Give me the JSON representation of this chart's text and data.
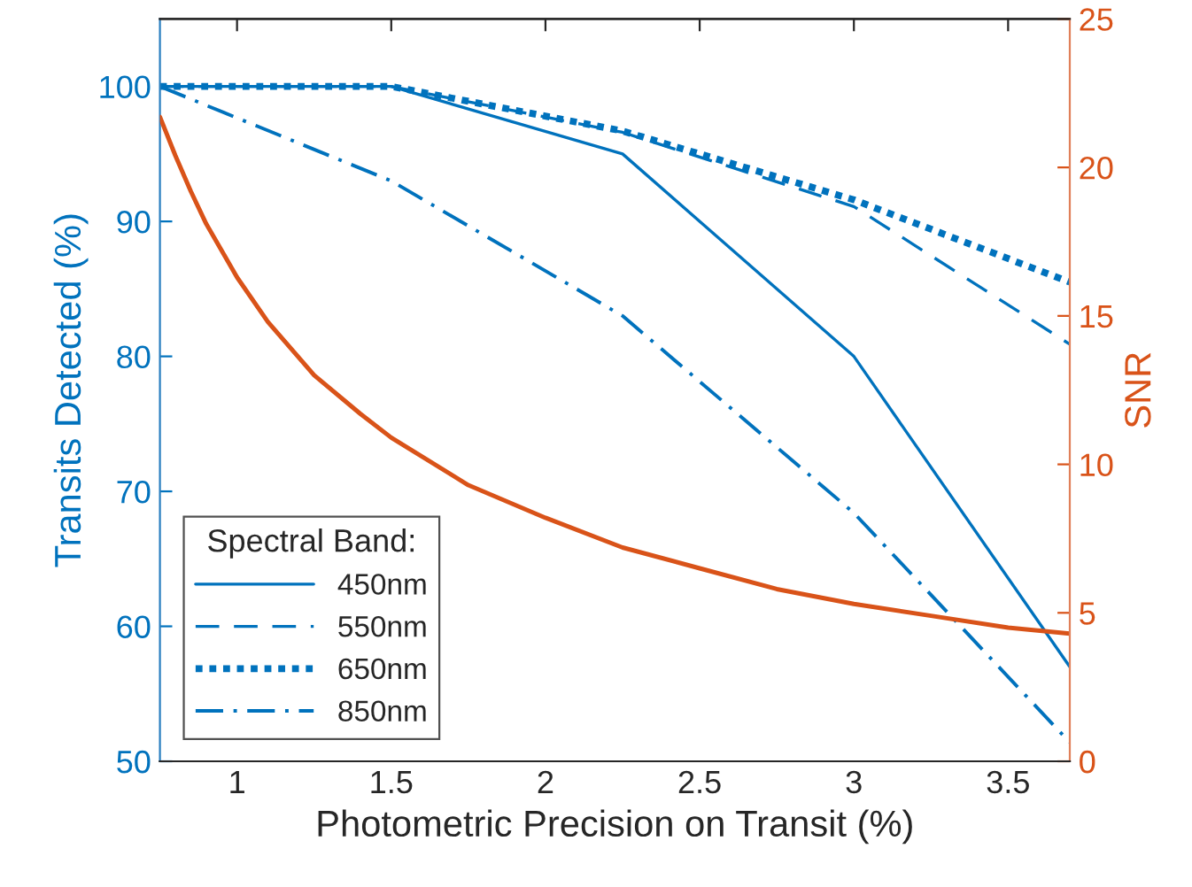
{
  "chart_data": {
    "type": "line",
    "xlabel": "Photometric Precision on Transit (%)",
    "ylabel": "Transits Detected (%)",
    "y2label": "SNR",
    "legend_title": "Spectral Band:",
    "legend": "bottom left",
    "grid": false,
    "xlim": [
      0.75,
      3.7
    ],
    "xticks": [
      1,
      1.5,
      2,
      2.5,
      3,
      3.5
    ],
    "ylim": [
      50,
      105
    ],
    "yticks": [
      50,
      60,
      70,
      80,
      90,
      100
    ],
    "y2lim": [
      0,
      25
    ],
    "y2ticks": [
      0,
      5,
      10,
      15,
      20,
      25
    ],
    "series": [
      {
        "name": "450nm",
        "color": "#0072bd",
        "line_style": "solid",
        "x": [
          0.75,
          1.5,
          2.25,
          3.0,
          3.7
        ],
        "values": [
          100,
          100,
          95,
          80,
          57
        ]
      },
      {
        "name": "550nm",
        "color": "#0072bd",
        "line_style": "dashed",
        "x": [
          0.75,
          1.5,
          2.25,
          3.0,
          3.7
        ],
        "values": [
          100,
          100,
          96.6,
          91.1,
          80.9
        ]
      },
      {
        "name": "650nm",
        "color": "#0072bd",
        "line_style": "dotted",
        "x": [
          0.75,
          1.5,
          2.25,
          3.0,
          3.7
        ],
        "values": [
          100,
          100,
          96.7,
          91.6,
          85.5
        ]
      },
      {
        "name": "850nm",
        "color": "#0072bd",
        "line_style": "dashdot",
        "x": [
          0.75,
          1.5,
          2.25,
          3.0,
          3.7
        ],
        "values": [
          100,
          93,
          83,
          68.4,
          51.4
        ]
      },
      {
        "color": "#d95319",
        "line_style": "solid",
        "axis": "y2",
        "x": [
          0.75,
          0.8,
          0.85,
          0.9,
          0.95,
          1.0,
          1.1,
          1.25,
          1.4,
          1.5,
          1.75,
          2.0,
          2.25,
          2.5,
          2.75,
          3.0,
          3.25,
          3.5,
          3.7
        ],
        "values": [
          21.7,
          20.4,
          19.2,
          18.1,
          17.2,
          16.3,
          14.8,
          13.0,
          11.7,
          10.9,
          9.3,
          8.2,
          7.2,
          6.5,
          5.8,
          5.3,
          4.9,
          4.5,
          4.3
        ]
      }
    ]
  }
}
